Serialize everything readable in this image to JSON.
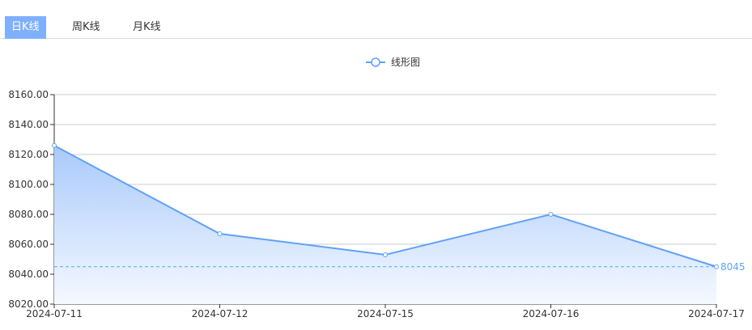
{
  "tabs": [
    {
      "label": "日K线",
      "active": true
    },
    {
      "label": "周K线",
      "active": false
    },
    {
      "label": "月K线",
      "active": false
    }
  ],
  "chart_data": {
    "type": "area",
    "legend": {
      "entries": [
        "线形图"
      ],
      "position": "top-center"
    },
    "categories": [
      "2024-07-11",
      "2024-07-12",
      "2024-07-15",
      "2024-07-16",
      "2024-07-17"
    ],
    "series": [
      {
        "name": "线形图",
        "values": [
          8126,
          8067,
          8053,
          8080,
          8045
        ]
      }
    ],
    "ylim": [
      8020,
      8160
    ],
    "yticks": [
      "8020.00",
      "8040.00",
      "8060.00",
      "8080.00",
      "8100.00",
      "8120.00",
      "8140.00",
      "8160.00"
    ],
    "mark_line": {
      "value": 8045,
      "label": "8045"
    },
    "grid": true,
    "colors": {
      "line": "#5fa2f5",
      "area_top": "#a9c9fb",
      "markline": "#5fa2f5"
    }
  }
}
